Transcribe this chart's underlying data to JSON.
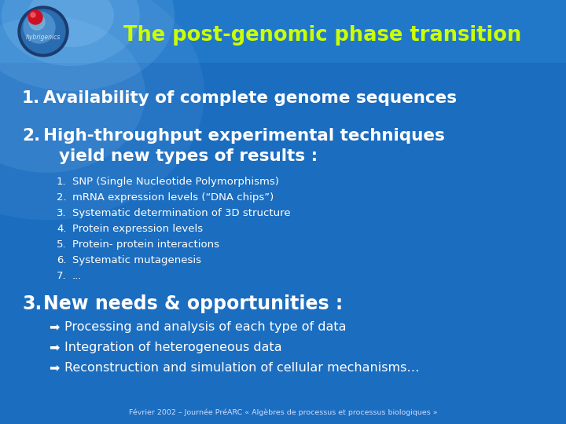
{
  "title": "The post-genomic phase transition",
  "title_color": "#CCFF00",
  "bg_color": "#1B6DBF",
  "header_bg_left": "#4A9DD4",
  "header_bg_right": "#1B6DBF",
  "text_color": "#FFFFFF",
  "yellow_green": "#CCFF00",
  "footer_text": "Février 2002 – Journée PréARC « Algèbres de processus et processus biologiques »",
  "footer_color": "#CCDDFF",
  "item1": "Availability of complete genome sequences",
  "item2_line1": "High-throughput experimental techniques",
  "item2_line2": "yield new types of results :",
  "subitems": [
    "SNP (Single Nucleotide Polymorphisms)",
    "mRNA expression levels (“DNA chips”)",
    "Systematic determination of 3D structure",
    "Protein expression levels",
    "Protein- protein interactions",
    "Systematic mutagenesis",
    "..."
  ],
  "item3": "New needs & opportunities :",
  "subitems3": [
    "Processing and analysis of each type of data",
    "Integration of heterogeneous data",
    "Reconstruction and simulation of cellular mechanisms…"
  ]
}
